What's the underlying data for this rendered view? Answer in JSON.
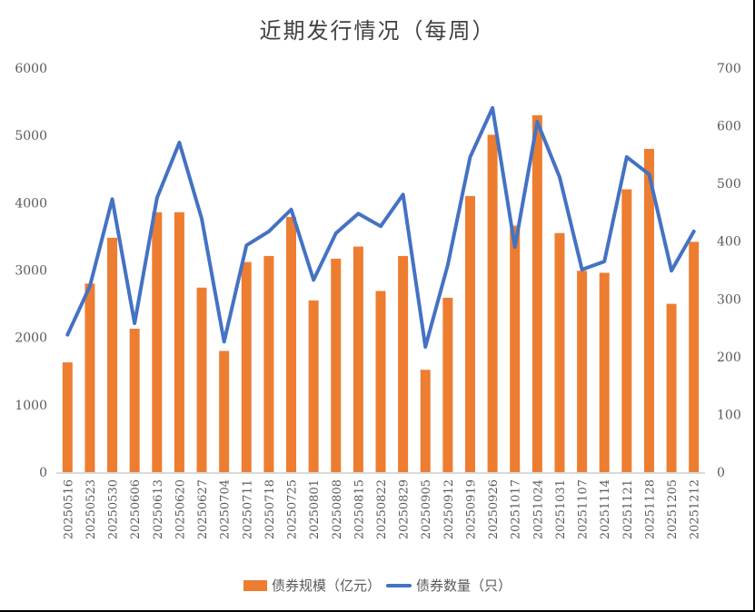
{
  "chart": {
    "title": "近期发行情况（每周）",
    "legend": {
      "bar_label": "债券规模（亿元）",
      "line_label": "债券数量（只）"
    },
    "colors": {
      "bar": "#ED7D31",
      "line": "#4472C4",
      "axis": "#D9D9D9",
      "tick_text": "#595959"
    }
  },
  "chart_data": {
    "type": "bar+line",
    "title": "近期发行情况（每周）",
    "xlabel": "",
    "ylabel": "债券规模（亿元）",
    "y2label": "债券数量（只）",
    "ylim": [
      0,
      6000
    ],
    "y2lim": [
      0,
      700
    ],
    "yticks": [
      0,
      1000,
      2000,
      3000,
      4000,
      5000,
      6000
    ],
    "y2ticks": [
      0,
      100,
      200,
      300,
      400,
      500,
      600,
      700
    ],
    "grid": false,
    "legend_position": "bottom",
    "categories": [
      "20250516",
      "20250523",
      "20250530",
      "20250606",
      "20250613",
      "20250620",
      "20250627",
      "20250704",
      "20250711",
      "20250718",
      "20250725",
      "20250801",
      "20250808",
      "20250815",
      "20250822",
      "20250829",
      "20250905",
      "20250912",
      "20250919",
      "20250926",
      "20251017",
      "20251024",
      "20251031",
      "20251107",
      "20251114",
      "20251121",
      "20251128",
      "20251205",
      "20251212"
    ],
    "series": [
      {
        "name": "债券规模（亿元）",
        "type": "bar",
        "axis": "left",
        "values": [
          1630,
          2800,
          3480,
          2130,
          3860,
          3860,
          2740,
          1800,
          3120,
          3210,
          3790,
          2550,
          3170,
          3350,
          2690,
          3210,
          1520,
          2590,
          4100,
          5010,
          3660,
          5300,
          3550,
          2990,
          2960,
          4200,
          4800,
          2500,
          3420
        ]
      },
      {
        "name": "债券数量（只）",
        "type": "line",
        "axis": "right",
        "values": [
          238,
          322,
          473,
          258,
          475,
          571,
          439,
          226,
          393,
          417,
          455,
          333,
          414,
          448,
          426,
          481,
          217,
          359,
          546,
          631,
          390,
          607,
          511,
          351,
          365,
          546,
          516,
          349,
          417
        ]
      }
    ]
  }
}
